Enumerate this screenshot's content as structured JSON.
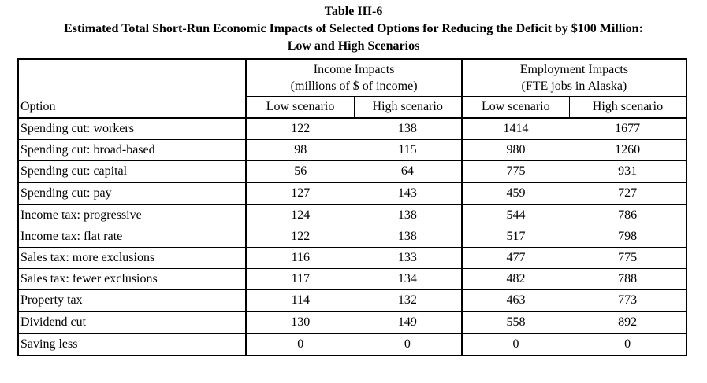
{
  "table": {
    "number": "Table III-6",
    "title": "Estimated Total Short-Run Economic Impacts of Selected Options for Reducing the Deficit by $100 Million:",
    "subtitle": "Low and High Scenarios",
    "groups": [
      {
        "line1": "Income Impacts",
        "line2": "(millions of $ of income)"
      },
      {
        "line1": "Employment Impacts",
        "line2": "(FTE jobs in Alaska)"
      }
    ],
    "col_option": "Option",
    "col_low": "Low scenario",
    "col_high": "High scenario",
    "rows": [
      {
        "option": "Spending cut: workers",
        "inc_low": "122",
        "inc_high": "138",
        "emp_low": "1414",
        "emp_high": "1677"
      },
      {
        "option": "Spending cut: broad-based",
        "inc_low": "98",
        "inc_high": "115",
        "emp_low": "980",
        "emp_high": "1260"
      },
      {
        "option": "Spending cut: capital",
        "inc_low": "56",
        "inc_high": "64",
        "emp_low": "775",
        "emp_high": "931"
      },
      {
        "option": "Spending cut: pay",
        "inc_low": "127",
        "inc_high": "143",
        "emp_low": "459",
        "emp_high": "727"
      },
      {
        "option": "Income tax: progressive",
        "inc_low": "124",
        "inc_high": "138",
        "emp_low": "544",
        "emp_high": "786"
      },
      {
        "option": "Income tax: flat rate",
        "inc_low": "122",
        "inc_high": "138",
        "emp_low": "517",
        "emp_high": "798"
      },
      {
        "option": "Sales tax: more exclusions",
        "inc_low": "116",
        "inc_high": "133",
        "emp_low": "477",
        "emp_high": "775"
      },
      {
        "option": "Sales tax: fewer exclusions",
        "inc_low": "117",
        "inc_high": "134",
        "emp_low": "482",
        "emp_high": "788"
      },
      {
        "option": "Property tax",
        "inc_low": "114",
        "inc_high": "132",
        "emp_low": "463",
        "emp_high": "773"
      },
      {
        "option": "Dividend cut",
        "inc_low": "130",
        "inc_high": "149",
        "emp_low": "558",
        "emp_high": "892"
      },
      {
        "option": "Saving less",
        "inc_low": "0",
        "inc_high": "0",
        "emp_low": "0",
        "emp_high": "0"
      }
    ]
  }
}
